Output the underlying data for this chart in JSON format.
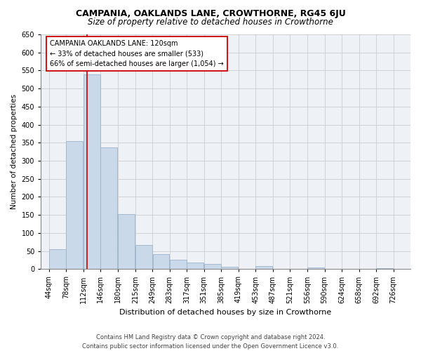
{
  "title": "CAMPANIA, OAKLANDS LANE, CROWTHORNE, RG45 6JU",
  "subtitle": "Size of property relative to detached houses in Crowthorne",
  "xlabel": "Distribution of detached houses by size in Crowthorne",
  "ylabel": "Number of detached properties",
  "footer1": "Contains HM Land Registry data © Crown copyright and database right 2024.",
  "footer2": "Contains public sector information licensed under the Open Government Licence v3.0.",
  "annotation_title": "CAMPANIA OAKLANDS LANE: 120sqm",
  "annotation_line1": "← 33% of detached houses are smaller (533)",
  "annotation_line2": "66% of semi-detached houses are larger (1,054) →",
  "property_size": 120,
  "bar_left_edges": [
    44,
    78,
    112,
    146,
    180,
    215,
    249,
    283,
    317,
    351,
    385,
    419,
    453,
    487,
    521,
    556,
    590,
    624,
    658,
    692
  ],
  "bar_widths": [
    34,
    34,
    34,
    34,
    35,
    34,
    34,
    34,
    34,
    34,
    34,
    34,
    34,
    34,
    35,
    34,
    34,
    34,
    34,
    34
  ],
  "bar_heights": [
    55,
    355,
    540,
    337,
    152,
    66,
    42,
    25,
    18,
    15,
    7,
    1,
    8,
    0,
    0,
    5,
    0,
    0,
    0,
    2
  ],
  "bar_color": "#cad9e9",
  "bar_edge_color": "#9cb3c9",
  "red_line_color": "#cc0000",
  "grid_color": "#cccccc",
  "background_color": "#eef2f7",
  "ylim": [
    0,
    650
  ],
  "yticks": [
    0,
    50,
    100,
    150,
    200,
    250,
    300,
    350,
    400,
    450,
    500,
    550,
    600,
    650
  ],
  "x_tick_labels": [
    "44sqm",
    "78sqm",
    "112sqm",
    "146sqm",
    "180sqm",
    "215sqm",
    "249sqm",
    "283sqm",
    "317sqm",
    "351sqm",
    "385sqm",
    "419sqm",
    "453sqm",
    "487sqm",
    "521sqm",
    "556sqm",
    "590sqm",
    "624sqm",
    "658sqm",
    "692sqm",
    "726sqm"
  ],
  "title_fontsize": 9,
  "subtitle_fontsize": 8.5,
  "ylabel_fontsize": 7.5,
  "xlabel_fontsize": 8,
  "tick_fontsize": 7,
  "ytick_fontsize": 7,
  "annotation_fontsize": 7,
  "footer_fontsize": 6
}
